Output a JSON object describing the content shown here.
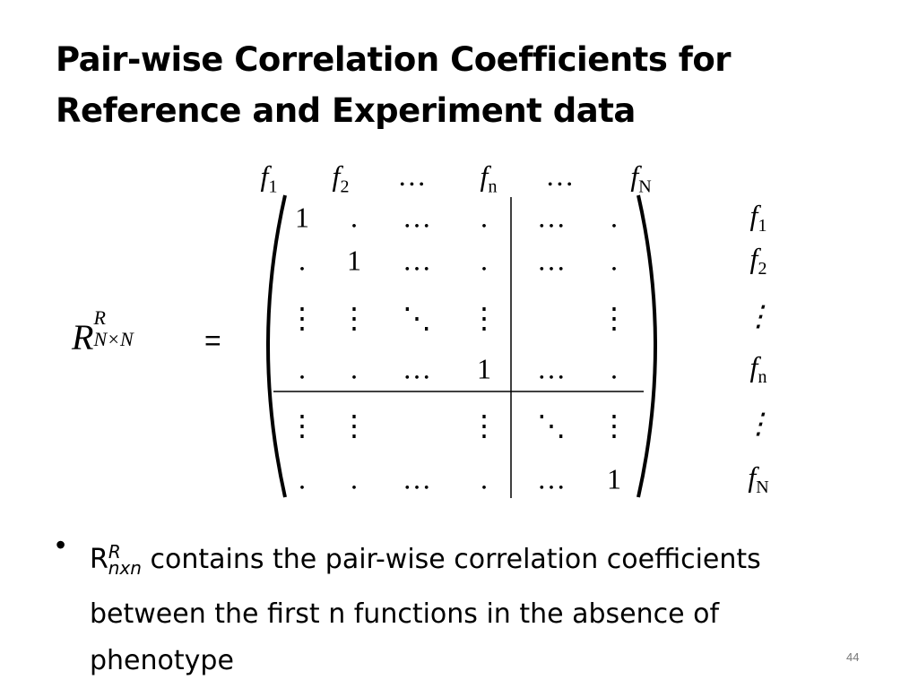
{
  "title": {
    "line1": "Pair-wise Correlation Coefficients for",
    "line2": "Reference and Experiment data"
  },
  "matrix": {
    "lhs": {
      "base": "R",
      "sup": "R",
      "sub": "N×N"
    },
    "equals": "=",
    "col_headers": [
      {
        "f": "f",
        "sub": "1"
      },
      {
        "f": "f",
        "sub": "2"
      },
      {
        "f": "…",
        "sub": ""
      },
      {
        "f": "f",
        "sub": "n"
      },
      {
        "f": "…",
        "sub": ""
      },
      {
        "f": "f",
        "sub": "N"
      }
    ],
    "rows": [
      [
        "1",
        ".",
        "…",
        ".",
        "…",
        "."
      ],
      [
        ".",
        "1",
        "…",
        ".",
        "…",
        "."
      ],
      [
        "⋮",
        "⋮",
        "⋱",
        "⋮",
        "",
        "⋮"
      ],
      [
        ".",
        ".",
        "…",
        "1",
        "…",
        "."
      ],
      [
        "⋮",
        "⋮",
        "",
        "⋮",
        "⋱",
        "⋮"
      ],
      [
        ".",
        ".",
        "…",
        ".",
        "…",
        "1"
      ]
    ],
    "row_labels": [
      {
        "f": "f",
        "sub": "1"
      },
      {
        "f": "f",
        "sub": "2"
      },
      {
        "f": "⋮",
        "sub": ""
      },
      {
        "f": "f",
        "sub": "n"
      },
      {
        "f": "⋮",
        "sub": ""
      },
      {
        "f": "f",
        "sub": "N"
      }
    ]
  },
  "bullet": {
    "symbol": "•",
    "r": "R",
    "sup": "R",
    "sub": "nxn",
    "text": " contains the pair-wise correlation coefficients between the first n functions in the absence of phenotype"
  },
  "page_number": "44"
}
